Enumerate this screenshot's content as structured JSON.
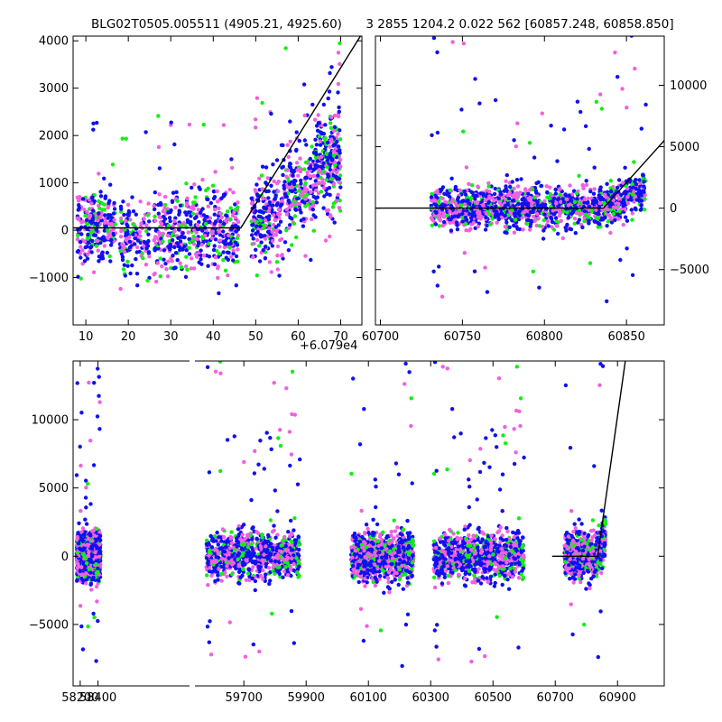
{
  "figure": {
    "title_left": "BLG02T0505.005511 (4905.21, 4925.60)",
    "title_right": "3 2855 1204.2 0.022 562 [60857.248, 60858.850]"
  },
  "colors": {
    "series_blue": "#1010f0",
    "series_green": "#10f010",
    "series_magenta": "#f060e0",
    "model": "#000000"
  },
  "chart_data": [
    {
      "id": "top-left",
      "type": "scatter",
      "title": "BLG02T0505.005511 (4905.21, 4925.60)",
      "xlim": [
        7,
        75
      ],
      "ylim": [
        -2000,
        4100
      ],
      "x_offset_label": "+6.079e4",
      "x_ticks": [
        10,
        20,
        30,
        40,
        50,
        60,
        70
      ],
      "x_tick_labels": [
        "10",
        "20",
        "30",
        "40",
        "50",
        "60",
        "70"
      ],
      "y_ticks": [
        -1000,
        0,
        1000,
        2000,
        3000,
        4000
      ],
      "y_tick_labels": [
        "−1000",
        "0",
        "1000",
        "2000",
        "3000",
        "4000"
      ],
      "y_axis_side": "left",
      "model_line": {
        "x": [
          7,
          46.5,
          75
        ],
        "y": [
          50,
          50,
          4150
        ]
      },
      "clusters": [
        {
          "x": [
            8,
            17
          ],
          "y": [
            -1200,
            1300
          ],
          "n": 260
        },
        {
          "x": [
            18,
            25
          ],
          "y": [
            -1500,
            1200
          ],
          "n": 140
        },
        {
          "x": [
            26,
            35
          ],
          "y": [
            -1500,
            1400
          ],
          "n": 220
        },
        {
          "x": [
            35,
            46
          ],
          "y": [
            -1400,
            1500
          ],
          "n": 260
        },
        {
          "x": [
            49,
            56
          ],
          "y": [
            -1300,
            1800
          ],
          "n": 220
        },
        {
          "x": [
            56,
            64
          ],
          "y": [
            -800,
            2600
          ],
          "n": 220
        },
        {
          "x": [
            64,
            70
          ],
          "y": [
            -400,
            3300
          ],
          "n": 260
        }
      ],
      "series": [
        {
          "name": "blue",
          "color": "#1010f0"
        },
        {
          "name": "green",
          "color": "#10f010"
        },
        {
          "name": "magenta",
          "color": "#f060e0"
        }
      ]
    },
    {
      "id": "top-right",
      "type": "scatter",
      "title": "3 2855 1204.2 0.022 562 [60857.248, 60858.850]",
      "xlim": [
        60697,
        60873
      ],
      "ylim": [
        -9500,
        14000
      ],
      "x_ticks": [
        60700,
        60750,
        60800,
        60850
      ],
      "x_tick_labels": [
        "60700",
        "60750",
        "60800",
        "60850"
      ],
      "y_ticks": [
        -5000,
        0,
        5000,
        10000
      ],
      "y_tick_labels": [
        "−5000",
        "0",
        "5000",
        "10000"
      ],
      "y_axis_side": "right",
      "model_line": {
        "x": [
          60697,
          60836,
          60873
        ],
        "y": [
          0,
          0,
          5500
        ]
      },
      "clusters": [
        {
          "x": [
            60731,
            60862
          ],
          "y": [
            -2800,
            3000
          ],
          "n": 1400
        }
      ],
      "series": [
        {
          "name": "blue",
          "color": "#1010f0"
        },
        {
          "name": "green",
          "color": "#10f010"
        },
        {
          "name": "magenta",
          "color": "#f060e0"
        }
      ]
    },
    {
      "id": "bottom",
      "type": "scatter",
      "xlim": [
        58120,
        59440
      ],
      "xlim_right": [
        59540,
        61050
      ],
      "ylim": [
        -9500,
        14300
      ],
      "x_ticks": [
        58200,
        58400,
        59700,
        59900,
        60100,
        60300,
        60500,
        60700,
        60900
      ],
      "x_tick_labels": [
        "58200",
        "58400",
        "59700",
        "59900",
        "60100",
        "60300",
        "60500",
        "60700",
        "60900"
      ],
      "y_ticks": [
        -5000,
        0,
        5000,
        10000
      ],
      "y_tick_labels": [
        "−5000",
        "0",
        "5000",
        "10000"
      ],
      "y_axis_side": "left",
      "model_line": {
        "x": [
          60690,
          60836,
          60925
        ],
        "y": [
          0,
          0,
          14300
        ]
      },
      "clusters": [
        {
          "x": [
            58160,
            58430
          ],
          "y": [
            -2800,
            3000
          ],
          "n": 900
        },
        {
          "x": [
            59580,
            59880
          ],
          "y": [
            -2800,
            3000
          ],
          "n": 900
        },
        {
          "x": [
            60045,
            60245
          ],
          "y": [
            -3000,
            3000
          ],
          "n": 900
        },
        {
          "x": [
            60310,
            60600
          ],
          "y": [
            -3000,
            3000
          ],
          "n": 900
        },
        {
          "x": [
            60730,
            60862
          ],
          "y": [
            -2700,
            3000
          ],
          "n": 700
        }
      ],
      "series": [
        {
          "name": "blue",
          "color": "#1010f0"
        },
        {
          "name": "green",
          "color": "#10f010"
        },
        {
          "name": "magenta",
          "color": "#f060e0"
        }
      ]
    }
  ]
}
